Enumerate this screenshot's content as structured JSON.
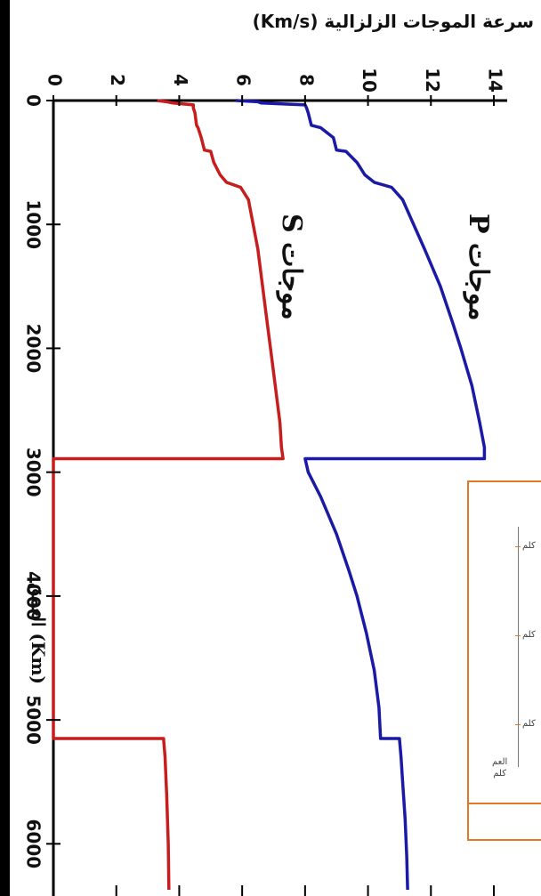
{
  "chart_data": {
    "type": "line",
    "orientation": "rotated-90",
    "xlabel": "العمق (Km)",
    "ylabel": "سرعة الموجات الزلزالية (Km/s)",
    "xlim": [
      0,
      6371
    ],
    "ylim": [
      0,
      14
    ],
    "x_ticks": [
      "0",
      "1000",
      "2000",
      "3000",
      "4000",
      "5000",
      "6000"
    ],
    "y_ticks": [
      "0",
      "2",
      "4",
      "6",
      "8",
      "10",
      "12",
      "14"
    ],
    "grid": false,
    "series": [
      {
        "name": "موجات P",
        "color": "#1a1aa6",
        "x": [
          0,
          10,
          20,
          35,
          60,
          100,
          200,
          220,
          300,
          400,
          410,
          500,
          600,
          660,
          700,
          800,
          1000,
          1200,
          1500,
          1800,
          2000,
          2300,
          2600,
          2800,
          2891,
          2891,
          3000,
          3200,
          3500,
          3800,
          4000,
          4300,
          4600,
          4900,
          5150,
          5150,
          5300,
          5500,
          5800,
          6100,
          6371
        ],
        "values": [
          5.8,
          6.5,
          6.6,
          8.0,
          8.05,
          8.1,
          8.2,
          8.5,
          8.9,
          9.0,
          9.3,
          9.65,
          9.9,
          10.2,
          10.75,
          11.1,
          11.45,
          11.8,
          12.3,
          12.7,
          12.95,
          13.3,
          13.55,
          13.7,
          13.7,
          8.0,
          8.1,
          8.5,
          9.0,
          9.4,
          9.65,
          9.95,
          10.2,
          10.35,
          10.4,
          11.0,
          11.05,
          11.1,
          11.18,
          11.23,
          11.26
        ]
      },
      {
        "name": "موجات S",
        "color": "#c71d1d",
        "x": [
          0,
          10,
          20,
          35,
          60,
          100,
          200,
          220,
          300,
          400,
          410,
          500,
          600,
          660,
          700,
          800,
          1000,
          1200,
          1500,
          1800,
          2000,
          2300,
          2600,
          2800,
          2891,
          2891,
          5150,
          5150,
          5300,
          5600,
          6000,
          6371
        ],
        "values": [
          3.3,
          3.6,
          3.8,
          4.45,
          4.45,
          4.5,
          4.55,
          4.6,
          4.7,
          4.8,
          5.0,
          5.1,
          5.3,
          5.5,
          5.95,
          6.2,
          6.35,
          6.5,
          6.65,
          6.8,
          6.9,
          7.05,
          7.2,
          7.25,
          7.3,
          0,
          0,
          3.5,
          3.55,
          3.6,
          3.65,
          3.67
        ]
      }
    ],
    "annotations": [
      {
        "text": "موجات P",
        "series": 0
      },
      {
        "text": "موجات S",
        "series": 1
      }
    ]
  },
  "inset": {
    "ticks": [
      "كلم",
      "كلم",
      "كلم"
    ],
    "axis_label_1": "العم",
    "axis_label_2": "كلم"
  }
}
